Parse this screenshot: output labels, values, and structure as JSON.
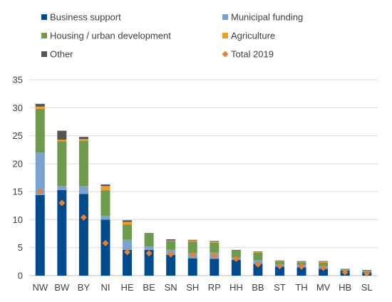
{
  "chart_data": {
    "type": "bar",
    "stacked": true,
    "categories": [
      "NW",
      "BW",
      "BY",
      "NI",
      "HE",
      "BE",
      "SN",
      "SH",
      "RP",
      "HH",
      "BB",
      "ST",
      "TH",
      "MV",
      "HB",
      "SL"
    ],
    "series": [
      {
        "name": "Business support",
        "color": "#004b8d",
        "values": [
          14.4,
          15.3,
          14.6,
          10.0,
          4.6,
          4.6,
          3.7,
          3.1,
          3.0,
          2.8,
          2.1,
          1.6,
          1.5,
          1.2,
          0.9,
          0.6
        ]
      },
      {
        "name": "Municipal funding",
        "color": "#7aa3cf",
        "values": [
          7.6,
          0.7,
          1.4,
          0.7,
          1.8,
          0.6,
          0.9,
          0.9,
          1.1,
          0.4,
          0.7,
          0.4,
          0.4,
          0.5,
          0.1,
          0.2
        ]
      },
      {
        "name": "Housing / urban development",
        "color": "#6e9a4c",
        "values": [
          7.8,
          8.0,
          8.1,
          4.6,
          2.7,
          2.3,
          1.6,
          2.1,
          1.8,
          1.3,
          1.3,
          0.5,
          0.5,
          0.6,
          0.1,
          0.1
        ]
      },
      {
        "name": "Agriculture",
        "color": "#f29b2a",
        "values": [
          0.4,
          0.3,
          0.3,
          0.7,
          0.5,
          0.0,
          0.1,
          0.2,
          0.2,
          0.0,
          0.1,
          0.1,
          0.1,
          0.2,
          0.0,
          0.0
        ]
      },
      {
        "name": "Other",
        "color": "#555555",
        "values": [
          0.5,
          1.6,
          0.4,
          0.3,
          0.3,
          0.1,
          0.2,
          0.1,
          0.1,
          0.1,
          0.1,
          0.1,
          0.1,
          0.1,
          0.1,
          0.1
        ]
      }
    ],
    "markers": {
      "name": "Total 2019",
      "color": "#ed7d31",
      "values": [
        15.0,
        13.0,
        10.4,
        5.8,
        4.2,
        4.0,
        3.8,
        3.7,
        3.6,
        3.0,
        2.0,
        1.7,
        1.6,
        1.4,
        0.6,
        0.4
      ]
    },
    "yticks": [
      0,
      5,
      10,
      15,
      20,
      25,
      30,
      35
    ],
    "ylim": [
      0,
      35
    ],
    "grid": "horizontal",
    "legend_position": "top"
  }
}
